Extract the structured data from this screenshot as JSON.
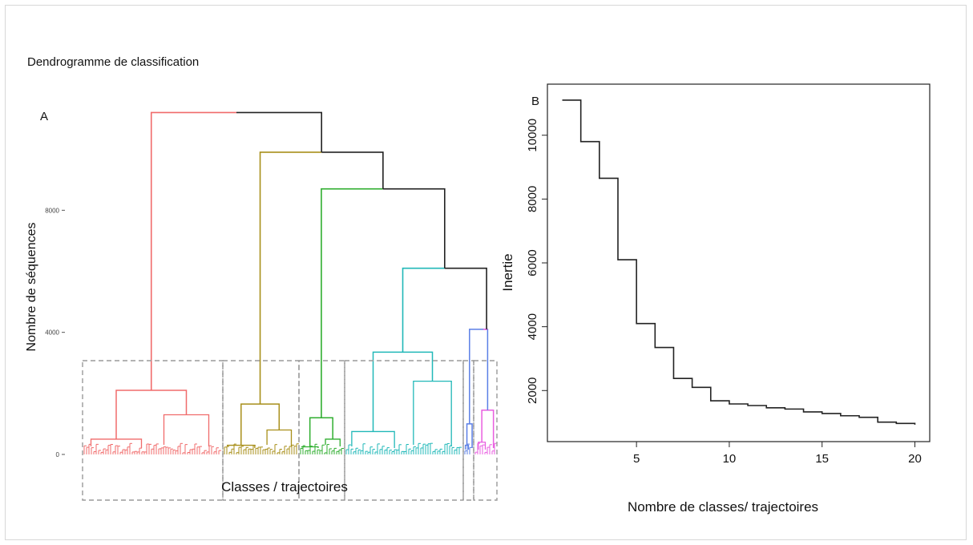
{
  "panels": {
    "title": "Dendrogramme de classification",
    "label_a": "A",
    "label_b": "B"
  },
  "chart_data": [
    {
      "type": "dendrogram",
      "ylabel": "Nombre de séquences",
      "xlabel": "Classes / trajectoires",
      "ylim": [
        0,
        12000
      ],
      "yticks": [
        0,
        4000,
        8000
      ],
      "ytick_labels": [
        "0",
        "4000",
        "8000"
      ],
      "clusters": [
        {
          "color": "#f06b6b",
          "top_height": 2100,
          "sub_heights": [
            1300,
            500
          ]
        },
        {
          "color": "#a88f1a",
          "top_height": 1650,
          "sub_heights": [
            800,
            300
          ]
        },
        {
          "color": "#2fae2f",
          "top_height": 1200,
          "sub_heights": [
            500,
            250
          ]
        },
        {
          "color": "#21b8b8",
          "top_height": 3350,
          "sub_heights": [
            2400,
            750
          ]
        },
        {
          "color": "#5b7fe6",
          "top_height": 1000,
          "sub_heights": [
            300
          ]
        },
        {
          "color": "#e95ee0",
          "top_height": 1450,
          "sub_heights": [
            400
          ]
        }
      ],
      "merges": [
        {
          "height": 4100,
          "color": "#c94fd6"
        },
        {
          "height": 6100,
          "color": "#21b8b8"
        },
        {
          "height": 8700,
          "color": "#2fae2f"
        },
        {
          "height": 9900,
          "color": "#a88f1a"
        },
        {
          "height": 11200,
          "color": "#f06b6b"
        }
      ]
    },
    {
      "type": "line",
      "step": true,
      "xlabel": "Nombre de classes/ trajectoires",
      "ylabel": "Inertie",
      "x": [
        1,
        2,
        3,
        4,
        5,
        6,
        7,
        8,
        9,
        10,
        11,
        12,
        13,
        14,
        15,
        16,
        17,
        18,
        19,
        20
      ],
      "y": [
        11100,
        9800,
        8650,
        6100,
        4100,
        3350,
        2380,
        2100,
        1680,
        1580,
        1530,
        1460,
        1420,
        1330,
        1280,
        1210,
        1160,
        1010,
        970,
        930
      ],
      "xticks": [
        5,
        10,
        15,
        20
      ],
      "yticks": [
        2000,
        4000,
        6000,
        8000,
        10000
      ],
      "xlim": [
        0.2,
        20.8
      ],
      "ylim": [
        400,
        11600
      ]
    }
  ]
}
